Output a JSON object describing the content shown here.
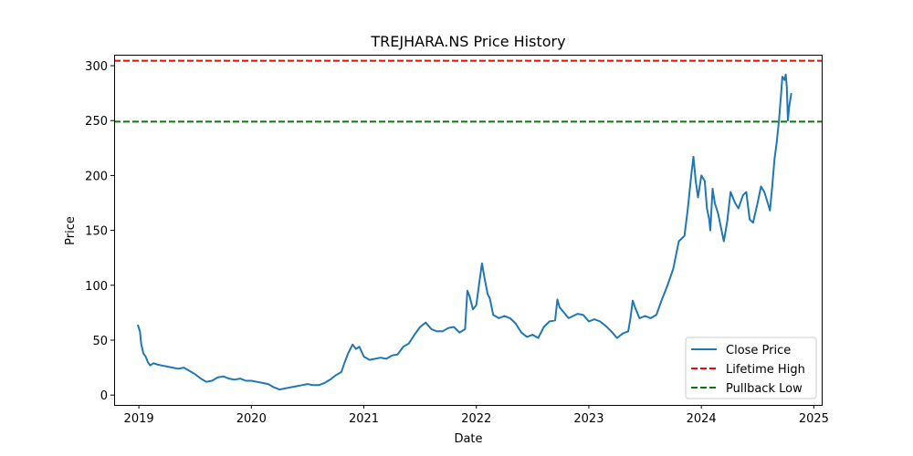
{
  "chart_data": {
    "type": "line",
    "title": "TREJHARA.NS Price History",
    "xlabel": "Date",
    "ylabel": "Price",
    "xlim": [
      2018.78,
      2025.07
    ],
    "ylim": [
      -9,
      310
    ],
    "xticks": [
      {
        "value": 2019,
        "label": "2019"
      },
      {
        "value": 2020,
        "label": "2020"
      },
      {
        "value": 2021,
        "label": "2021"
      },
      {
        "value": 2022,
        "label": "2022"
      },
      {
        "value": 2023,
        "label": "2023"
      },
      {
        "value": 2024,
        "label": "2024"
      },
      {
        "value": 2025,
        "label": "2025"
      }
    ],
    "yticks": [
      {
        "value": 0,
        "label": "0"
      },
      {
        "value": 50,
        "label": "50"
      },
      {
        "value": 100,
        "label": "100"
      },
      {
        "value": 150,
        "label": "150"
      },
      {
        "value": 200,
        "label": "200"
      },
      {
        "value": 250,
        "label": "250"
      },
      {
        "value": 300,
        "label": "300"
      }
    ],
    "grid": false,
    "legend_position": "lower-right",
    "series": [
      {
        "name": "Close Price",
        "style": "solid",
        "color": "#1f77b4",
        "points": [
          [
            2018.99,
            64
          ],
          [
            2019.01,
            58
          ],
          [
            2019.02,
            47
          ],
          [
            2019.04,
            38
          ],
          [
            2019.06,
            35
          ],
          [
            2019.08,
            30
          ],
          [
            2019.1,
            27
          ],
          [
            2019.13,
            29
          ],
          [
            2019.16,
            28
          ],
          [
            2019.2,
            27
          ],
          [
            2019.25,
            26
          ],
          [
            2019.3,
            25
          ],
          [
            2019.35,
            24
          ],
          [
            2019.4,
            25
          ],
          [
            2019.45,
            22
          ],
          [
            2019.5,
            19
          ],
          [
            2019.55,
            15
          ],
          [
            2019.6,
            12
          ],
          [
            2019.65,
            13
          ],
          [
            2019.7,
            16
          ],
          [
            2019.75,
            17
          ],
          [
            2019.8,
            15
          ],
          [
            2019.85,
            14
          ],
          [
            2019.9,
            15
          ],
          [
            2019.95,
            13
          ],
          [
            2020.0,
            13
          ],
          [
            2020.05,
            12
          ],
          [
            2020.1,
            11
          ],
          [
            2020.15,
            10
          ],
          [
            2020.2,
            7
          ],
          [
            2020.25,
            5
          ],
          [
            2020.3,
            6
          ],
          [
            2020.35,
            7
          ],
          [
            2020.4,
            8
          ],
          [
            2020.45,
            9
          ],
          [
            2020.5,
            10
          ],
          [
            2020.55,
            9
          ],
          [
            2020.6,
            9
          ],
          [
            2020.65,
            11
          ],
          [
            2020.7,
            14
          ],
          [
            2020.75,
            18
          ],
          [
            2020.8,
            21
          ],
          [
            2020.83,
            30
          ],
          [
            2020.86,
            38
          ],
          [
            2020.9,
            46
          ],
          [
            2020.93,
            42
          ],
          [
            2020.96,
            44
          ],
          [
            2021.0,
            35
          ],
          [
            2021.05,
            32
          ],
          [
            2021.1,
            33
          ],
          [
            2021.15,
            34
          ],
          [
            2021.2,
            33
          ],
          [
            2021.25,
            36
          ],
          [
            2021.3,
            37
          ],
          [
            2021.35,
            44
          ],
          [
            2021.4,
            47
          ],
          [
            2021.45,
            55
          ],
          [
            2021.5,
            62
          ],
          [
            2021.55,
            66
          ],
          [
            2021.6,
            60
          ],
          [
            2021.65,
            58
          ],
          [
            2021.7,
            58
          ],
          [
            2021.75,
            61
          ],
          [
            2021.8,
            62
          ],
          [
            2021.85,
            57
          ],
          [
            2021.9,
            60
          ],
          [
            2021.92,
            95
          ],
          [
            2021.94,
            90
          ],
          [
            2021.97,
            78
          ],
          [
            2022.0,
            82
          ],
          [
            2022.03,
            105
          ],
          [
            2022.05,
            120
          ],
          [
            2022.07,
            108
          ],
          [
            2022.1,
            92
          ],
          [
            2022.12,
            88
          ],
          [
            2022.15,
            73
          ],
          [
            2022.2,
            70
          ],
          [
            2022.25,
            72
          ],
          [
            2022.3,
            70
          ],
          [
            2022.35,
            65
          ],
          [
            2022.4,
            57
          ],
          [
            2022.45,
            53
          ],
          [
            2022.5,
            55
          ],
          [
            2022.55,
            52
          ],
          [
            2022.6,
            62
          ],
          [
            2022.65,
            67
          ],
          [
            2022.7,
            68
          ],
          [
            2022.72,
            87
          ],
          [
            2022.74,
            80
          ],
          [
            2022.78,
            75
          ],
          [
            2022.82,
            70
          ],
          [
            2022.86,
            72
          ],
          [
            2022.9,
            74
          ],
          [
            2022.95,
            73
          ],
          [
            2023.0,
            67
          ],
          [
            2023.05,
            69
          ],
          [
            2023.1,
            67
          ],
          [
            2023.15,
            63
          ],
          [
            2023.2,
            58
          ],
          [
            2023.25,
            52
          ],
          [
            2023.3,
            56
          ],
          [
            2023.35,
            58
          ],
          [
            2023.37,
            70
          ],
          [
            2023.39,
            86
          ],
          [
            2023.41,
            80
          ],
          [
            2023.45,
            70
          ],
          [
            2023.5,
            72
          ],
          [
            2023.55,
            70
          ],
          [
            2023.6,
            73
          ],
          [
            2023.65,
            87
          ],
          [
            2023.7,
            100
          ],
          [
            2023.75,
            115
          ],
          [
            2023.8,
            140
          ],
          [
            2023.85,
            145
          ],
          [
            2023.88,
            170
          ],
          [
            2023.91,
            200
          ],
          [
            2023.93,
            217
          ],
          [
            2023.95,
            195
          ],
          [
            2023.97,
            180
          ],
          [
            2024.0,
            200
          ],
          [
            2024.03,
            195
          ],
          [
            2024.05,
            170
          ],
          [
            2024.07,
            160
          ],
          [
            2024.08,
            150
          ],
          [
            2024.1,
            188
          ],
          [
            2024.12,
            175
          ],
          [
            2024.15,
            165
          ],
          [
            2024.18,
            150
          ],
          [
            2024.2,
            140
          ],
          [
            2024.23,
            158
          ],
          [
            2024.26,
            185
          ],
          [
            2024.3,
            175
          ],
          [
            2024.33,
            170
          ],
          [
            2024.37,
            182
          ],
          [
            2024.4,
            185
          ],
          [
            2024.43,
            160
          ],
          [
            2024.46,
            157
          ],
          [
            2024.5,
            175
          ],
          [
            2024.53,
            190
          ],
          [
            2024.56,
            185
          ],
          [
            2024.59,
            175
          ],
          [
            2024.61,
            168
          ],
          [
            2024.63,
            190
          ],
          [
            2024.65,
            215
          ],
          [
            2024.67,
            230
          ],
          [
            2024.69,
            250
          ],
          [
            2024.71,
            275
          ],
          [
            2024.72,
            290
          ],
          [
            2024.74,
            287
          ],
          [
            2024.75,
            292
          ],
          [
            2024.76,
            280
          ],
          [
            2024.77,
            250
          ],
          [
            2024.78,
            262
          ],
          [
            2024.8,
            275
          ]
        ]
      },
      {
        "name": "Lifetime High",
        "style": "dashed",
        "color": "#ff0000",
        "y": 304.5
      },
      {
        "name": "Pullback Low",
        "style": "dashed",
        "color": "#008000",
        "y": 249
      }
    ]
  }
}
